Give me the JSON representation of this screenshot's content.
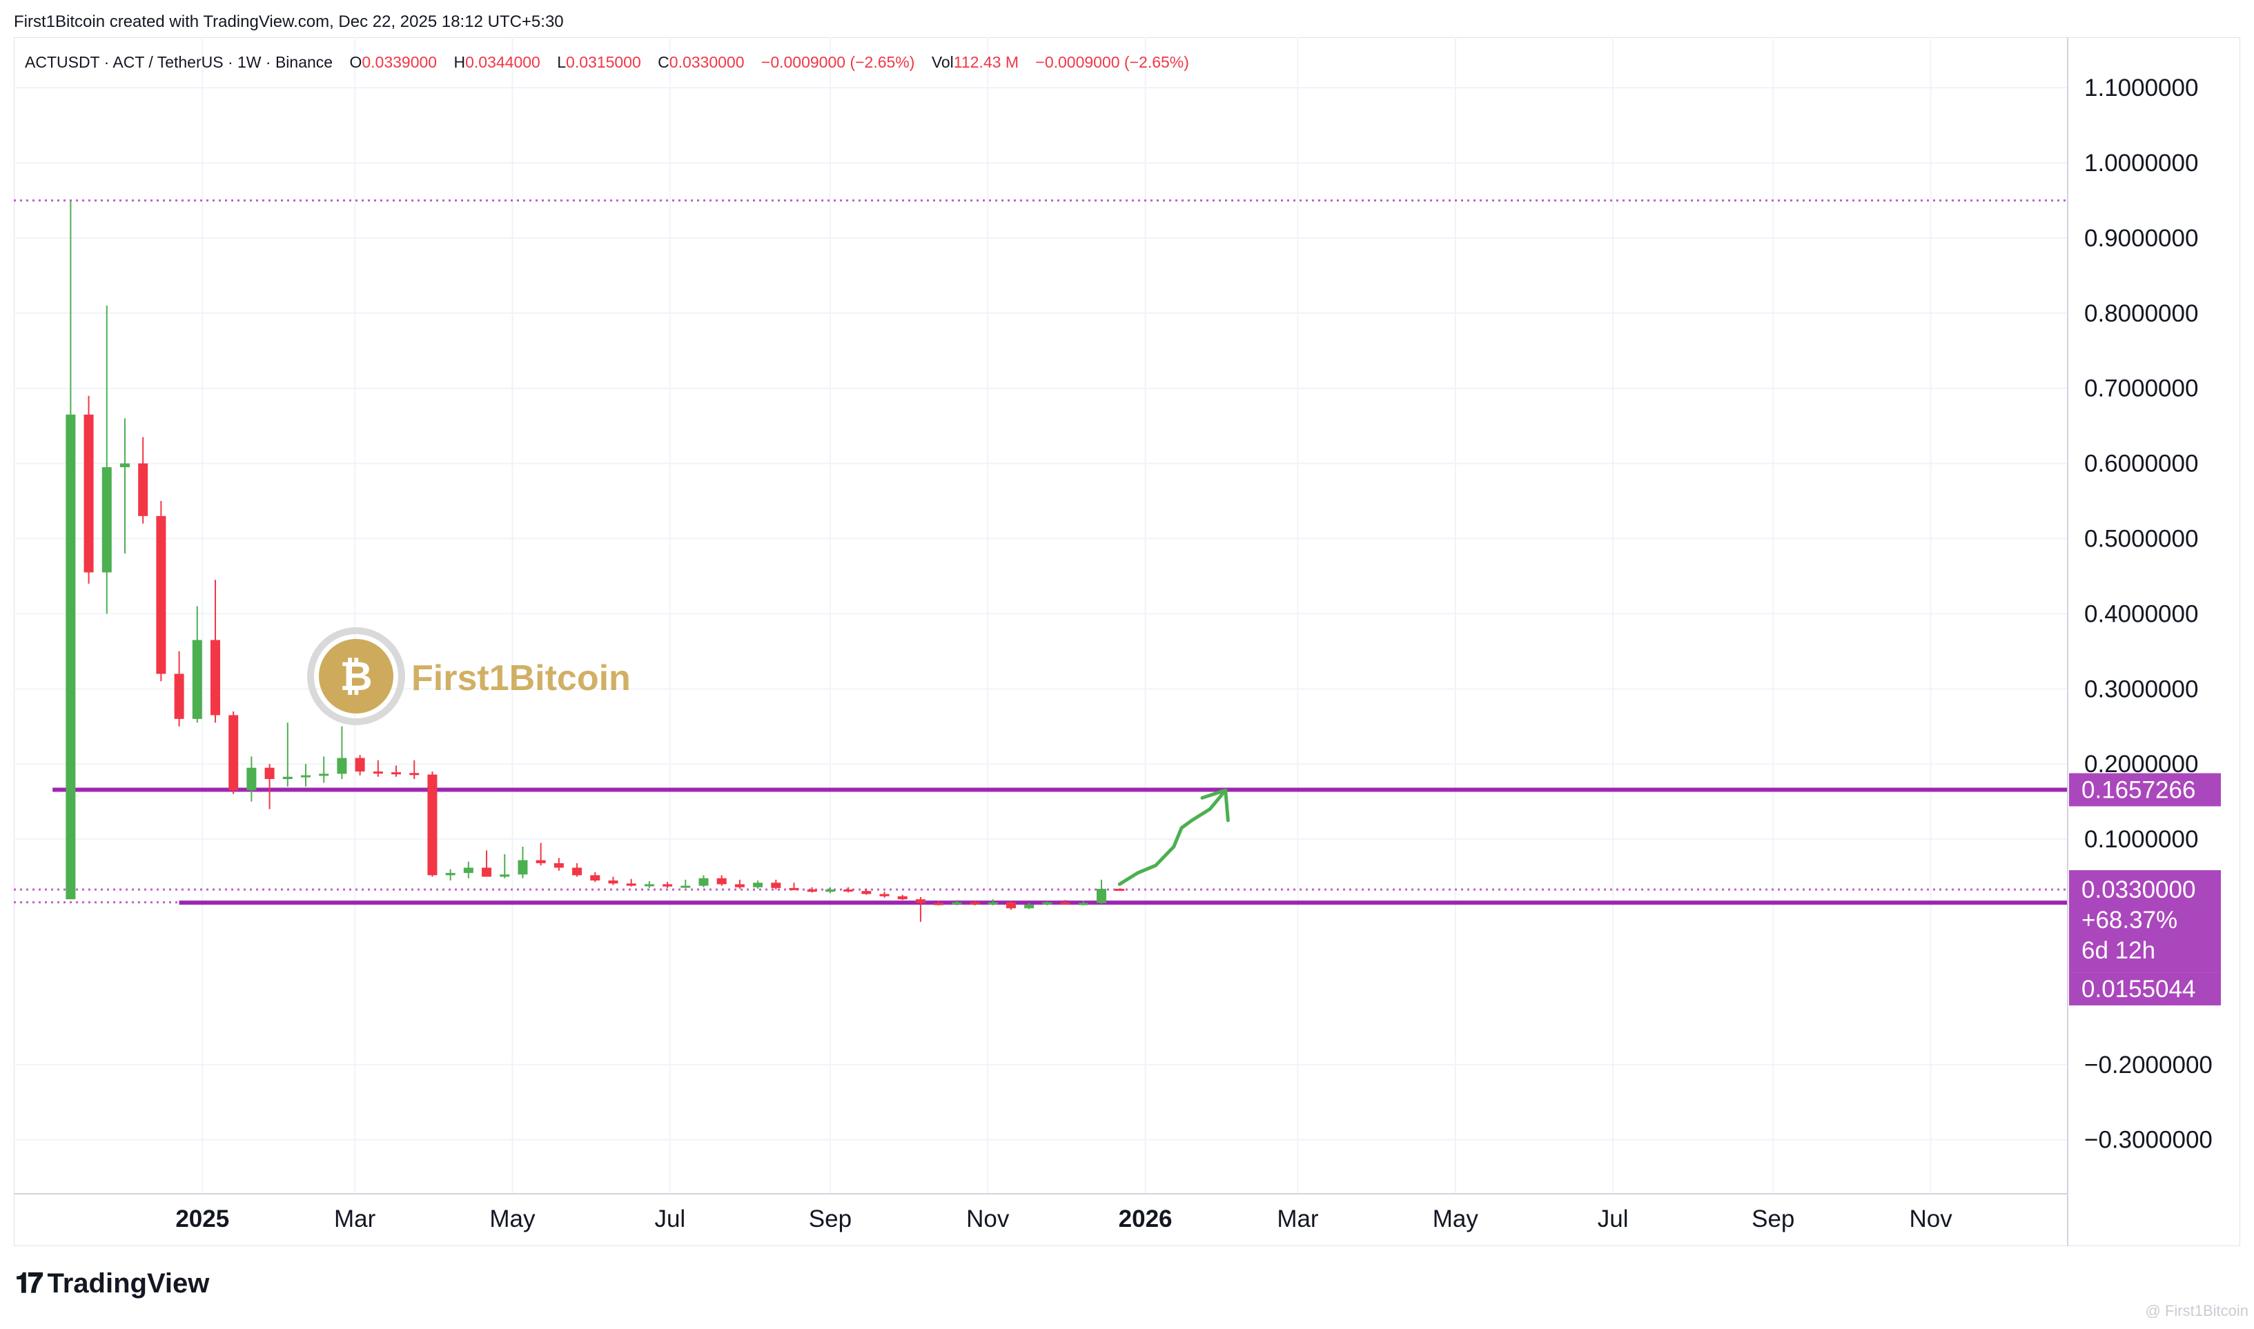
{
  "header": {
    "caption": "First1Bitcoin created with TradingView.com, Dec 22, 2025 18:12 UTC+5:30"
  },
  "legend": {
    "symbol": "ACTUSDT · ACT / TetherUS · 1W · Binance",
    "o_label": "O",
    "o_value": "0.0339000",
    "h_label": "H",
    "h_value": "0.0344000",
    "l_label": "L",
    "l_value": "0.0315000",
    "c_label": "C",
    "c_value": "0.0330000",
    "change": "−0.0009000 (−2.65%)",
    "vol_label": "Vol",
    "vol_value": "112.43 M",
    "vol_change": "−0.0009000 (−2.65%)"
  },
  "watermark": {
    "text": "First1Bitcoin"
  },
  "footer": {
    "brand": "TradingView",
    "corner_watermark": "@ First1Bitcoin"
  },
  "colors": {
    "up": "#4caf50",
    "down": "#f23645",
    "level": "#9c27b0",
    "label_bg": "#ab47bc",
    "dotted": "#c061cb",
    "arrow": "#4caf50",
    "grid": "#f0f3fa",
    "axis_text": "#131722",
    "logo_gold": "#c9a24a"
  },
  "chart_data": {
    "type": "candlestick",
    "symbol": "ACTUSDT",
    "timeframe": "1W",
    "exchange": "Binance",
    "y_ticks": [
      -0.3,
      -0.2,
      0.1,
      0.2,
      0.3,
      0.4,
      0.5,
      0.6,
      0.7,
      0.8,
      0.9,
      1.0,
      1.1
    ],
    "y_tick_labels": [
      "−0.3000000",
      "−0.2000000",
      "0.1000000",
      "0.2000000",
      "0.3000000",
      "0.4000000",
      "0.5000000",
      "0.6000000",
      "0.7000000",
      "0.8000000",
      "0.9000000",
      "1.0000000",
      "1.1000000"
    ],
    "ylim": [
      -0.38,
      1.16
    ],
    "x_ticks": [
      {
        "label": "2025",
        "date": "2025-01-01",
        "bold": true
      },
      {
        "label": "Mar",
        "date": "2025-03-01",
        "bold": false
      },
      {
        "label": "May",
        "date": "2025-05-01",
        "bold": false
      },
      {
        "label": "Jul",
        "date": "2025-07-01",
        "bold": false
      },
      {
        "label": "Sep",
        "date": "2025-09-01",
        "bold": false
      },
      {
        "label": "Nov",
        "date": "2025-11-01",
        "bold": false
      },
      {
        "label": "2026",
        "date": "2026-01-01",
        "bold": true
      },
      {
        "label": "Mar",
        "date": "2026-03-01",
        "bold": false
      },
      {
        "label": "May",
        "date": "2026-05-01",
        "bold": false
      },
      {
        "label": "Jul",
        "date": "2026-07-01",
        "bold": false
      },
      {
        "label": "Sep",
        "date": "2026-09-01",
        "bold": false
      },
      {
        "label": "Nov",
        "date": "2026-11-01",
        "bold": false
      }
    ],
    "x_range": [
      "2024-10-20",
      "2026-12-24"
    ],
    "candles": [
      {
        "t": "2024-11-11",
        "o": 0.02,
        "h": 0.95,
        "l": 0.02,
        "c": 0.665
      },
      {
        "t": "2024-11-18",
        "o": 0.665,
        "h": 0.69,
        "l": 0.44,
        "c": 0.455
      },
      {
        "t": "2024-11-25",
        "o": 0.455,
        "h": 0.81,
        "l": 0.4,
        "c": 0.595
      },
      {
        "t": "2024-12-02",
        "o": 0.595,
        "h": 0.66,
        "l": 0.48,
        "c": 0.6
      },
      {
        "t": "2024-12-09",
        "o": 0.6,
        "h": 0.635,
        "l": 0.52,
        "c": 0.53
      },
      {
        "t": "2024-12-16",
        "o": 0.53,
        "h": 0.55,
        "l": 0.31,
        "c": 0.32
      },
      {
        "t": "2024-12-23",
        "o": 0.32,
        "h": 0.35,
        "l": 0.25,
        "c": 0.26
      },
      {
        "t": "2024-12-30",
        "o": 0.26,
        "h": 0.41,
        "l": 0.255,
        "c": 0.365
      },
      {
        "t": "2025-01-06",
        "o": 0.365,
        "h": 0.445,
        "l": 0.255,
        "c": 0.265
      },
      {
        "t": "2025-01-13",
        "o": 0.265,
        "h": 0.27,
        "l": 0.16,
        "c": 0.165
      },
      {
        "t": "2025-01-20",
        "o": 0.165,
        "h": 0.21,
        "l": 0.15,
        "c": 0.195
      },
      {
        "t": "2025-01-27",
        "o": 0.195,
        "h": 0.2,
        "l": 0.14,
        "c": 0.18
      },
      {
        "t": "2025-02-03",
        "o": 0.18,
        "h": 0.255,
        "l": 0.17,
        "c": 0.183
      },
      {
        "t": "2025-02-10",
        "o": 0.183,
        "h": 0.2,
        "l": 0.17,
        "c": 0.185
      },
      {
        "t": "2025-02-17",
        "o": 0.185,
        "h": 0.21,
        "l": 0.175,
        "c": 0.187
      },
      {
        "t": "2025-02-24",
        "o": 0.187,
        "h": 0.25,
        "l": 0.18,
        "c": 0.208
      },
      {
        "t": "2025-03-03",
        "o": 0.208,
        "h": 0.212,
        "l": 0.185,
        "c": 0.19
      },
      {
        "t": "2025-03-10",
        "o": 0.19,
        "h": 0.205,
        "l": 0.183,
        "c": 0.189
      },
      {
        "t": "2025-03-17",
        "o": 0.189,
        "h": 0.198,
        "l": 0.183,
        "c": 0.188
      },
      {
        "t": "2025-03-24",
        "o": 0.188,
        "h": 0.205,
        "l": 0.18,
        "c": 0.186
      },
      {
        "t": "2025-03-31",
        "o": 0.186,
        "h": 0.19,
        "l": 0.05,
        "c": 0.052
      },
      {
        "t": "2025-04-07",
        "o": 0.052,
        "h": 0.06,
        "l": 0.045,
        "c": 0.055
      },
      {
        "t": "2025-04-14",
        "o": 0.055,
        "h": 0.07,
        "l": 0.048,
        "c": 0.062
      },
      {
        "t": "2025-04-21",
        "o": 0.062,
        "h": 0.085,
        "l": 0.05,
        "c": 0.05
      },
      {
        "t": "2025-04-28",
        "o": 0.05,
        "h": 0.08,
        "l": 0.048,
        "c": 0.053
      },
      {
        "t": "2025-05-05",
        "o": 0.053,
        "h": 0.09,
        "l": 0.048,
        "c": 0.072
      },
      {
        "t": "2025-05-12",
        "o": 0.072,
        "h": 0.095,
        "l": 0.065,
        "c": 0.068
      },
      {
        "t": "2025-05-19",
        "o": 0.068,
        "h": 0.075,
        "l": 0.058,
        "c": 0.062
      },
      {
        "t": "2025-05-26",
        "o": 0.062,
        "h": 0.068,
        "l": 0.05,
        "c": 0.052
      },
      {
        "t": "2025-06-02",
        "o": 0.052,
        "h": 0.056,
        "l": 0.043,
        "c": 0.045
      },
      {
        "t": "2025-06-09",
        "o": 0.045,
        "h": 0.05,
        "l": 0.039,
        "c": 0.041
      },
      {
        "t": "2025-06-16",
        "o": 0.041,
        "h": 0.047,
        "l": 0.037,
        "c": 0.038
      },
      {
        "t": "2025-06-23",
        "o": 0.038,
        "h": 0.044,
        "l": 0.035,
        "c": 0.04
      },
      {
        "t": "2025-06-30",
        "o": 0.04,
        "h": 0.043,
        "l": 0.035,
        "c": 0.037
      },
      {
        "t": "2025-07-07",
        "o": 0.037,
        "h": 0.046,
        "l": 0.035,
        "c": 0.038
      },
      {
        "t": "2025-07-14",
        "o": 0.038,
        "h": 0.052,
        "l": 0.036,
        "c": 0.048
      },
      {
        "t": "2025-07-21",
        "o": 0.048,
        "h": 0.052,
        "l": 0.038,
        "c": 0.04
      },
      {
        "t": "2025-07-28",
        "o": 0.04,
        "h": 0.046,
        "l": 0.034,
        "c": 0.036
      },
      {
        "t": "2025-08-04",
        "o": 0.036,
        "h": 0.045,
        "l": 0.034,
        "c": 0.042
      },
      {
        "t": "2025-08-11",
        "o": 0.042,
        "h": 0.046,
        "l": 0.033,
        "c": 0.035
      },
      {
        "t": "2025-08-18",
        "o": 0.035,
        "h": 0.042,
        "l": 0.032,
        "c": 0.033
      },
      {
        "t": "2025-08-25",
        "o": 0.033,
        "h": 0.036,
        "l": 0.029,
        "c": 0.03
      },
      {
        "t": "2025-09-01",
        "o": 0.03,
        "h": 0.036,
        "l": 0.028,
        "c": 0.033
      },
      {
        "t": "2025-09-08",
        "o": 0.033,
        "h": 0.036,
        "l": 0.029,
        "c": 0.031
      },
      {
        "t": "2025-09-15",
        "o": 0.031,
        "h": 0.034,
        "l": 0.026,
        "c": 0.027
      },
      {
        "t": "2025-09-22",
        "o": 0.027,
        "h": 0.03,
        "l": 0.022,
        "c": 0.024
      },
      {
        "t": "2025-09-29",
        "o": 0.024,
        "h": 0.026,
        "l": 0.019,
        "c": 0.02
      },
      {
        "t": "2025-10-06",
        "o": 0.02,
        "h": 0.023,
        "l": -0.01,
        "c": 0.015
      },
      {
        "t": "2025-10-13",
        "o": 0.015,
        "h": 0.018,
        "l": 0.012,
        "c": 0.014
      },
      {
        "t": "2025-10-20",
        "o": 0.014,
        "h": 0.019,
        "l": 0.012,
        "c": 0.016
      },
      {
        "t": "2025-10-27",
        "o": 0.016,
        "h": 0.018,
        "l": 0.012,
        "c": 0.013
      },
      {
        "t": "2025-11-03",
        "o": 0.013,
        "h": 0.02,
        "l": 0.012,
        "c": 0.016
      },
      {
        "t": "2025-11-10",
        "o": 0.016,
        "h": 0.018,
        "l": 0.006,
        "c": 0.008
      },
      {
        "t": "2025-11-17",
        "o": 0.008,
        "h": 0.015,
        "l": 0.007,
        "c": 0.013
      },
      {
        "t": "2025-11-24",
        "o": 0.013,
        "h": 0.017,
        "l": 0.012,
        "c": 0.016
      },
      {
        "t": "2025-12-01",
        "o": 0.016,
        "h": 0.019,
        "l": 0.013,
        "c": 0.014
      },
      {
        "t": "2025-12-08",
        "o": 0.014,
        "h": 0.018,
        "l": 0.012,
        "c": 0.015
      },
      {
        "t": "2025-12-15",
        "o": 0.015,
        "h": 0.046,
        "l": 0.014,
        "c": 0.0339
      },
      {
        "t": "2025-12-22",
        "o": 0.0339,
        "h": 0.0344,
        "l": 0.0315,
        "c": 0.033
      }
    ],
    "levels": [
      {
        "value": 0.1657266,
        "label": "0.1657266",
        "from": "2024-11-04"
      },
      {
        "value": 0.0155044,
        "label": "0.0155044",
        "from": "2024-12-23"
      }
    ],
    "dotted_lines": [
      0.95,
      0.033,
      0.016
    ],
    "current_price": {
      "value": 0.033,
      "label": "0.0330000",
      "change": "+68.37%",
      "countdown": "6d 12h"
    },
    "arrow_path": [
      {
        "t": "2025-12-22",
        "v": 0.04
      },
      {
        "t": "2025-12-29",
        "v": 0.055
      },
      {
        "t": "2026-01-05",
        "v": 0.065
      },
      {
        "t": "2026-01-12",
        "v": 0.09
      },
      {
        "t": "2026-01-15",
        "v": 0.115
      },
      {
        "t": "2026-01-19",
        "v": 0.125
      },
      {
        "t": "2026-01-26",
        "v": 0.14
      },
      {
        "t": "2026-02-01",
        "v": 0.165
      }
    ],
    "arrow_head": [
      {
        "t": "2026-01-23",
        "v": 0.155
      },
      {
        "t": "2026-02-01",
        "v": 0.165
      },
      {
        "t": "2026-02-02",
        "v": 0.125
      }
    ]
  }
}
